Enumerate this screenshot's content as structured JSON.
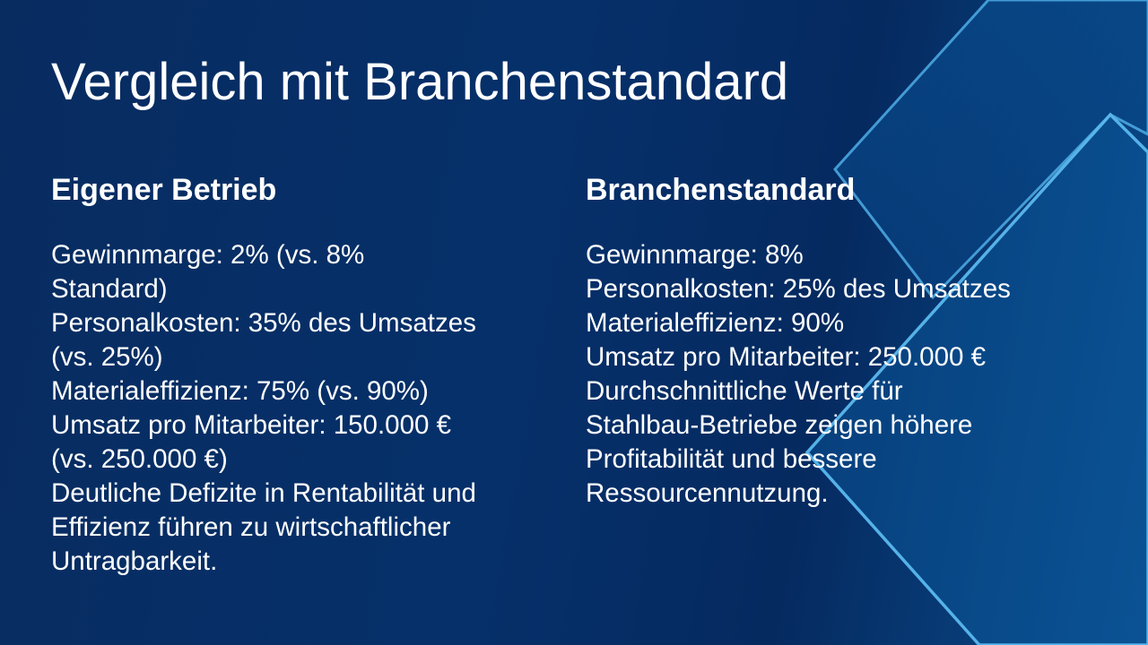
{
  "slide": {
    "title": "Vergleich mit Branchenstandard",
    "left_column": {
      "heading": "Eigener Betrieb",
      "lines": [
        "Gewinnmarge: 2% (vs. 8%",
        "Standard)",
        "Personalkosten: 35% des Umsatzes",
        "(vs. 25%)",
        "Materialeffizienz: 75% (vs. 90%)",
        "Umsatz pro Mitarbeiter: 150.000 €",
        "(vs. 250.000 €)",
        "Deutliche Defizite in Rentabilität und",
        "Effizienz führen zu wirtschaftlicher",
        "Untragbarkeit."
      ]
    },
    "right_column": {
      "heading": "Branchenstandard",
      "lines": [
        "Gewinnmarge: 8%",
        "Personalkosten: 25% des Umsatzes",
        "Materialeffizienz: 90%",
        "Umsatz pro Mitarbeiter: 250.000 €",
        "Durchschnittliche Werte für",
        "Stahlbau-Betriebe zeigen höhere",
        "Profitabilität und bessere",
        "Ressourcennutzung."
      ]
    }
  },
  "colors": {
    "background": "#06306a",
    "accent_line": "#5ab8ee",
    "text": "#ffffff"
  }
}
